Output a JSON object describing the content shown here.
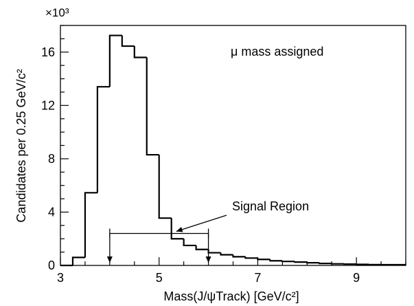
{
  "chart_data": {
    "type": "histogram",
    "title": "",
    "xlabel": "Mass(J/ψTrack) [GeV/c²]",
    "ylabel": "Candidates per 0.25 GeV/c²",
    "y_multiplier": "×10³",
    "xlim": [
      3,
      10
    ],
    "ylim": [
      0,
      18
    ],
    "x_ticks": [
      3,
      5,
      7,
      9
    ],
    "y_ticks": [
      0,
      4,
      8,
      12,
      16
    ],
    "x_minor_step": 0.5,
    "y_minor_step": 1,
    "grid": false,
    "bin_width": 0.25,
    "bin_edges": [
      3.0,
      3.25,
      3.5,
      3.75,
      4.0,
      4.25,
      4.5,
      4.75,
      5.0,
      5.25,
      5.5,
      5.75,
      6.0,
      6.25,
      6.5,
      6.75,
      7.0,
      7.25,
      7.5,
      7.75,
      8.0,
      8.25,
      8.5,
      8.75,
      9.0,
      9.25,
      9.5,
      9.75,
      10.0
    ],
    "values": [
      0.0,
      0.6,
      5.45,
      13.4,
      17.25,
      16.45,
      15.6,
      8.3,
      3.55,
      2.0,
      1.5,
      1.2,
      0.95,
      0.8,
      0.65,
      0.55,
      0.45,
      0.35,
      0.3,
      0.25,
      0.2,
      0.15,
      0.12,
      0.1,
      0.08,
      0.06,
      0.05,
      0.05
    ],
    "annotations": {
      "legend_text": "μ mass assigned",
      "signal_region": {
        "label": "Signal Region",
        "x_start": 4.0,
        "x_end": 6.0,
        "bar_y": 2.4
      }
    }
  }
}
